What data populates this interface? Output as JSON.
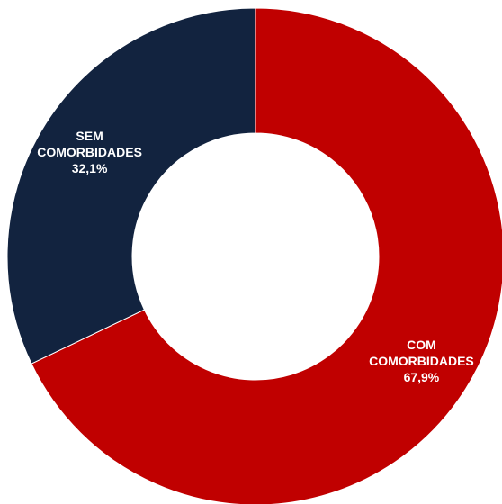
{
  "chart_data": {
    "type": "pie",
    "variant": "donut",
    "title": "",
    "start_angle_deg": 0,
    "direction": "clockwise",
    "slices": [
      {
        "label_lines": [
          "COM",
          "COMORBIDADES"
        ],
        "value": 67.9,
        "value_text": "67,9%",
        "color": "#c00000"
      },
      {
        "label_lines": [
          "SEM",
          "COMORBIDADES"
        ],
        "value": 32.1,
        "value_text": "32,1%",
        "color": "#12233f"
      }
    ],
    "label_color": "#ffffff",
    "legend": "none"
  }
}
